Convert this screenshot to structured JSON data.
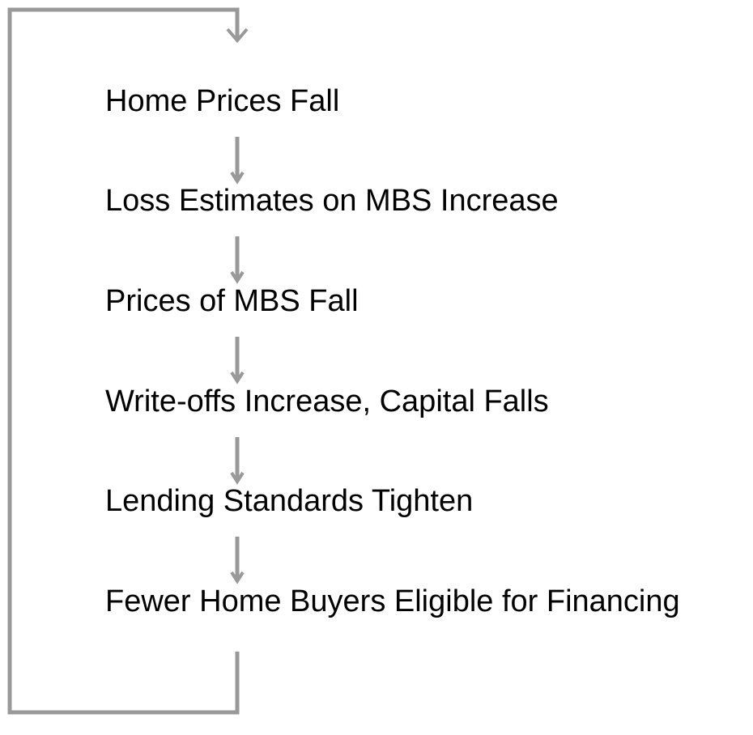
{
  "nodes": [
    {
      "label": "Home Prices Fall"
    },
    {
      "label": "Loss Estimates on MBS Increase"
    },
    {
      "label": "Prices of MBS Fall"
    },
    {
      "label": "Write-offs Increase, Capital Falls"
    },
    {
      "label": "Lending Standards Tighten"
    },
    {
      "label": "Fewer Home Buyers Eligible for Financing"
    }
  ]
}
